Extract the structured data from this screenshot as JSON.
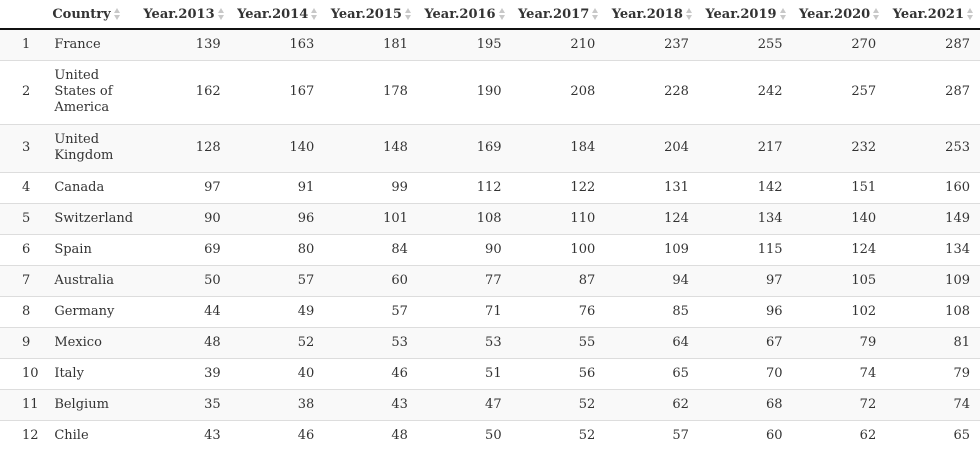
{
  "table": {
    "columns": [
      "",
      "Country",
      "Year.2013",
      "Year.2014",
      "Year.2015",
      "Year.2016",
      "Year.2017",
      "Year.2018",
      "Year.2019",
      "Year.2020",
      "Year.2021"
    ],
    "rows": [
      {
        "idx": "1",
        "country": "France",
        "values": [
          "139",
          "163",
          "181",
          "195",
          "210",
          "237",
          "255",
          "270",
          "287"
        ]
      },
      {
        "idx": "2",
        "country": "United States of America",
        "values": [
          "162",
          "167",
          "178",
          "190",
          "208",
          "228",
          "242",
          "257",
          "287"
        ]
      },
      {
        "idx": "3",
        "country": "United Kingdom",
        "values": [
          "128",
          "140",
          "148",
          "169",
          "184",
          "204",
          "217",
          "232",
          "253"
        ]
      },
      {
        "idx": "4",
        "country": "Canada",
        "values": [
          "97",
          "91",
          "99",
          "112",
          "122",
          "131",
          "142",
          "151",
          "160"
        ]
      },
      {
        "idx": "5",
        "country": "Switzerland",
        "values": [
          "90",
          "96",
          "101",
          "108",
          "110",
          "124",
          "134",
          "140",
          "149"
        ]
      },
      {
        "idx": "6",
        "country": "Spain",
        "values": [
          "69",
          "80",
          "84",
          "90",
          "100",
          "109",
          "115",
          "124",
          "134"
        ]
      },
      {
        "idx": "7",
        "country": "Australia",
        "values": [
          "50",
          "57",
          "60",
          "77",
          "87",
          "94",
          "97",
          "105",
          "109"
        ]
      },
      {
        "idx": "8",
        "country": "Germany",
        "values": [
          "44",
          "49",
          "57",
          "71",
          "76",
          "85",
          "96",
          "102",
          "108"
        ]
      },
      {
        "idx": "9",
        "country": "Mexico",
        "values": [
          "48",
          "52",
          "53",
          "53",
          "55",
          "64",
          "67",
          "79",
          "81"
        ]
      },
      {
        "idx": "10",
        "country": "Italy",
        "values": [
          "39",
          "40",
          "46",
          "51",
          "56",
          "65",
          "70",
          "74",
          "79"
        ]
      },
      {
        "idx": "11",
        "country": "Belgium",
        "values": [
          "35",
          "38",
          "43",
          "47",
          "52",
          "62",
          "68",
          "72",
          "74"
        ]
      },
      {
        "idx": "12",
        "country": "Chile",
        "values": [
          "43",
          "46",
          "48",
          "50",
          "52",
          "57",
          "60",
          "62",
          "65"
        ]
      }
    ]
  }
}
